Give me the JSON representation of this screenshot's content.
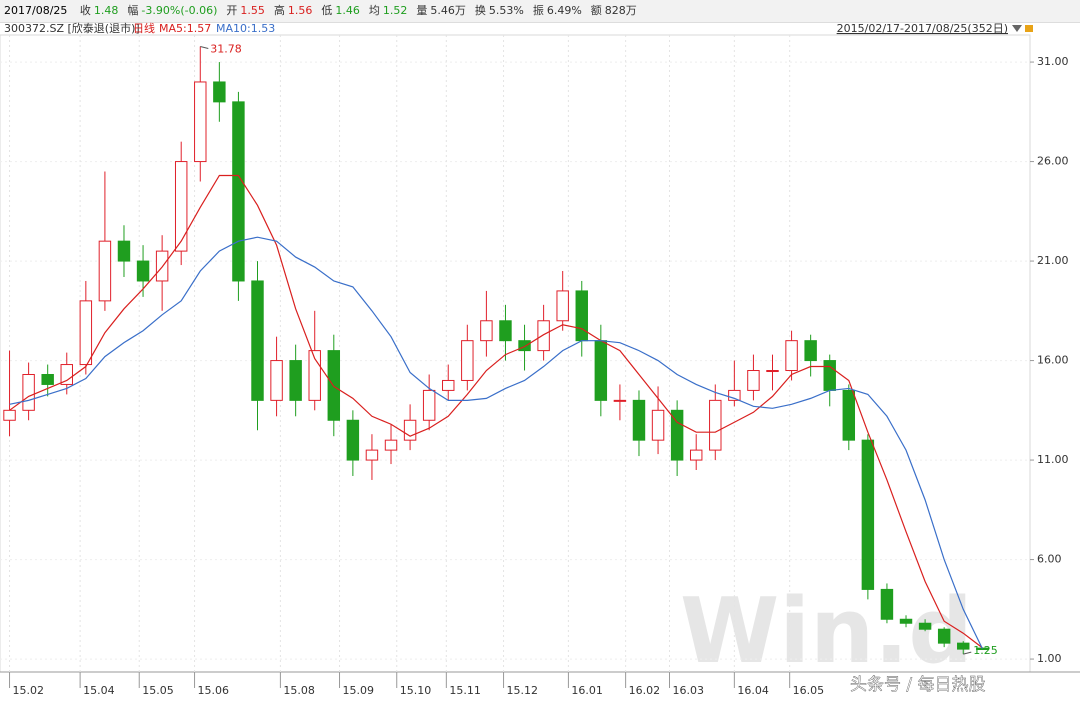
{
  "header": {
    "date": "2017/08/25",
    "quote": [
      {
        "label": "收",
        "value": "1.48",
        "color": "#1f9e1f"
      },
      {
        "label": "幅",
        "value": "-3.90%(-0.06)",
        "color": "#1f9e1f"
      },
      {
        "label": "开",
        "value": "1.55",
        "color": "#d9201f"
      },
      {
        "label": "高",
        "value": "1.56",
        "color": "#d9201f"
      },
      {
        "label": "低",
        "value": "1.46",
        "color": "#1f9e1f"
      },
      {
        "label": "均",
        "value": "1.52",
        "color": "#1f9e1f"
      },
      {
        "label": "量",
        "value": "5.46万",
        "color": "#333333"
      },
      {
        "label": "换",
        "value": "5.53%",
        "color": "#333333"
      },
      {
        "label": "振",
        "value": "6.49%",
        "color": "#333333"
      },
      {
        "label": "额",
        "value": "828万",
        "color": "#333333"
      }
    ],
    "security": "300372.SZ [欣泰退(退市)]",
    "period": "日线",
    "range": "2015/02/17-2017/08/25(352日)",
    "watermark": "Win.d",
    "source": "头条号 / 每日热股"
  },
  "chart_data": {
    "type": "candlestick",
    "x": [
      0,
      1,
      2,
      3,
      4,
      5,
      6,
      7,
      8,
      9,
      10,
      11,
      12,
      13,
      14,
      15,
      16,
      17,
      18,
      19,
      20,
      21,
      22,
      23,
      24,
      25,
      26,
      27,
      28,
      29,
      30,
      31,
      32,
      33,
      34,
      35,
      36,
      37,
      38,
      39,
      40,
      41,
      42,
      43,
      44,
      45,
      46,
      47,
      48,
      49,
      50,
      51
    ],
    "open": [
      13,
      13.5,
      15.3,
      14.8,
      15.8,
      19,
      22,
      21,
      20,
      21.5,
      26,
      30,
      29,
      20,
      14,
      16,
      14,
      16.5,
      13,
      11,
      11.5,
      12,
      13,
      14.5,
      15,
      17,
      18,
      17,
      16.5,
      18,
      19.5,
      17,
      14,
      14,
      12,
      13.5,
      11,
      11.5,
      14,
      14.5,
      15.5,
      15.5,
      17,
      16,
      14.5,
      12,
      4.5,
      3,
      2.8,
      2.5,
      1.8,
      1.55
    ],
    "high": [
      16.5,
      15.9,
      15.8,
      16.4,
      20,
      25.5,
      22.8,
      21.8,
      22.3,
      27,
      31.78,
      31,
      29.5,
      21,
      17.2,
      16.8,
      18.5,
      17.3,
      13.5,
      12.3,
      12.8,
      13.8,
      15.3,
      15.8,
      17.8,
      19.5,
      18.8,
      17.8,
      18.8,
      20.5,
      20,
      17.8,
      14.8,
      14.5,
      14.7,
      14,
      12.3,
      14.8,
      16,
      16.3,
      16.3,
      17.5,
      17.3,
      16.3,
      14.8,
      12.3,
      4.8,
      3.2,
      3,
      2.6,
      1.9,
      1.56
    ],
    "low": [
      12.2,
      13,
      14.2,
      14.3,
      15.3,
      18.5,
      20.2,
      19.2,
      18.5,
      20.8,
      25,
      28,
      19,
      12.5,
      13.2,
      13.2,
      13.5,
      12.2,
      10.2,
      10,
      10.8,
      11.5,
      12.5,
      14,
      14.5,
      16.2,
      16,
      15.5,
      16,
      17.5,
      16.2,
      13.2,
      13,
      11.2,
      11.3,
      10.2,
      10.5,
      11,
      13.7,
      14,
      14.5,
      15,
      15.2,
      13.7,
      11.5,
      4,
      2.8,
      2.6,
      2.4,
      1.6,
      1.25,
      1.46
    ],
    "close": [
      13.5,
      15.3,
      14.8,
      15.8,
      19,
      22,
      21,
      20,
      21.5,
      26,
      30,
      29,
      20,
      14,
      16,
      14,
      16.5,
      13,
      11,
      11.5,
      12,
      13,
      14.5,
      15,
      17,
      18,
      17,
      16.5,
      18,
      19.5,
      17,
      14,
      14,
      12,
      13.5,
      11,
      11.5,
      14,
      14.5,
      15.5,
      15.5,
      17,
      16,
      14.5,
      12,
      4.5,
      3,
      2.8,
      2.5,
      1.8,
      1.5,
      1.48
    ],
    "up_color": "#e0202a",
    "down_color": "#1f9e1f",
    "series": [
      {
        "name": "K"
      },
      {
        "name": "MA5:1.57",
        "color": "#d9201f",
        "values": [
          13.5,
          14.2,
          14.6,
          15,
          15.7,
          17.4,
          18.6,
          19.6,
          20.7,
          22,
          23.7,
          25.3,
          25.3,
          23.8,
          21.8,
          18.6,
          16.1,
          14.7,
          14.1,
          13.2,
          12.8,
          12.2,
          12.6,
          13.2,
          14.3,
          15.5,
          16.3,
          16.7,
          17.3,
          17.8,
          17.6,
          17,
          16.5,
          15.3,
          14.1,
          12.9,
          12.4,
          12.4,
          12.9,
          13.4,
          14.2,
          15.3,
          15.7,
          15.7,
          15,
          12.4,
          10,
          7.4,
          4.9,
          2.9,
          2.3,
          1.57
        ]
      },
      {
        "name": "MA10:1.53",
        "color": "#3a6fc9",
        "values": [
          13.8,
          14,
          14.3,
          14.6,
          15.1,
          16.2,
          16.9,
          17.5,
          18.3,
          19,
          20.5,
          21.5,
          22,
          22.2,
          22,
          21.2,
          20.7,
          20,
          19.7,
          18.5,
          17.2,
          15.4,
          14.6,
          14,
          14,
          14.1,
          14.6,
          15,
          15.7,
          16.5,
          17,
          17,
          16.9,
          16.5,
          16,
          15.3,
          14.8,
          14.4,
          14.1,
          13.7,
          13.6,
          13.8,
          14.1,
          14.5,
          14.6,
          14.3,
          13.2,
          11.5,
          9,
          6,
          3.5,
          1.53
        ]
      }
    ],
    "annotations": [
      {
        "x": 10,
        "value": 31.78,
        "label": "31.78",
        "color": "#d9201f"
      },
      {
        "x": 50,
        "value": 1.25,
        "label": "1.25",
        "color": "#1f9e1f"
      }
    ],
    "xlim": [
      -0.5,
      53.5
    ],
    "xticks": [
      {
        "value": 0,
        "label": "15.02"
      },
      {
        "value": 3.7,
        "label": "15.04"
      },
      {
        "value": 6.8,
        "label": "15.05"
      },
      {
        "value": 9.7,
        "label": "15.06"
      },
      {
        "value": 14.2,
        "label": "15.08"
      },
      {
        "value": 17.3,
        "label": "15.09"
      },
      {
        "value": 20.3,
        "label": "15.10"
      },
      {
        "value": 22.9,
        "label": "15.11"
      },
      {
        "value": 25.9,
        "label": "15.12"
      },
      {
        "value": 29.3,
        "label": "16.01"
      },
      {
        "value": 32.3,
        "label": "16.02"
      },
      {
        "value": 34.6,
        "label": "16.03"
      },
      {
        "value": 38,
        "label": "16.04"
      },
      {
        "value": 40.9,
        "label": "16.05"
      }
    ],
    "ylim": [
      0.35,
      32.36
    ],
    "yticks": [
      {
        "value": 1,
        "label": "1.00"
      },
      {
        "value": 6,
        "label": "6.00"
      },
      {
        "value": 11,
        "label": "11.00"
      },
      {
        "value": 16,
        "label": "16.00"
      },
      {
        "value": 21,
        "label": "21.00"
      },
      {
        "value": 26,
        "label": "26.00"
      },
      {
        "value": 31,
        "label": "31.00"
      }
    ],
    "grid": true
  }
}
